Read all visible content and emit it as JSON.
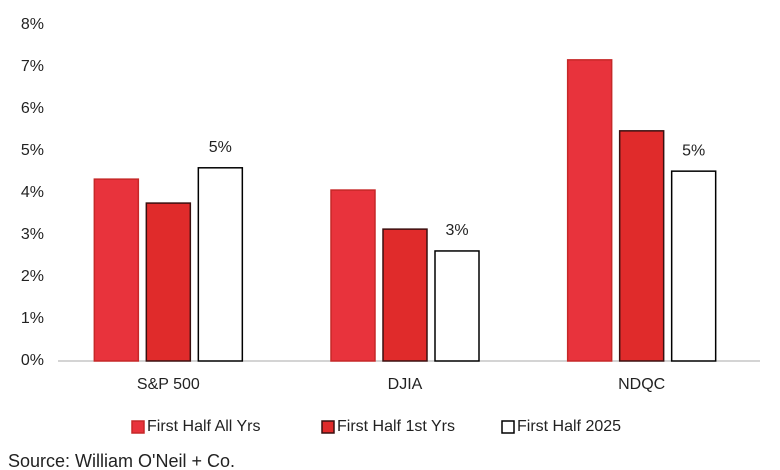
{
  "chart_data": {
    "type": "bar",
    "categories": [
      "S&P 500",
      "DJIA",
      "NDQC"
    ],
    "series": [
      {
        "name": "First Half All Yrs",
        "color": "#e8333c",
        "edgecolor": "#c62828",
        "values": [
          4.33,
          4.07,
          7.17
        ]
      },
      {
        "name": "First Half 1st Yrs",
        "color": "#e02b2b",
        "edgecolor": "#3a1010",
        "values": [
          3.76,
          3.14,
          5.48
        ]
      },
      {
        "name": "First Half 2025",
        "color": "#ffffff",
        "edgecolor": "#000000",
        "values": [
          4.6,
          2.62,
          4.52
        ],
        "value_labels": [
          "5%",
          "3%",
          "5%"
        ]
      }
    ],
    "ylim": [
      0,
      8
    ],
    "yticks": [
      {
        "value": 0,
        "label": "0%"
      },
      {
        "value": 1,
        "label": "1%"
      },
      {
        "value": 2,
        "label": "2%"
      },
      {
        "value": 3,
        "label": "3%"
      },
      {
        "value": 4,
        "label": "4%"
      },
      {
        "value": 5,
        "label": "5%"
      },
      {
        "value": 6,
        "label": "6%"
      },
      {
        "value": 7,
        "label": "7%"
      },
      {
        "value": 8,
        "label": "8%"
      }
    ],
    "grid": false,
    "legend": "bottom",
    "source": "Source: William O'Neil + Co."
  }
}
